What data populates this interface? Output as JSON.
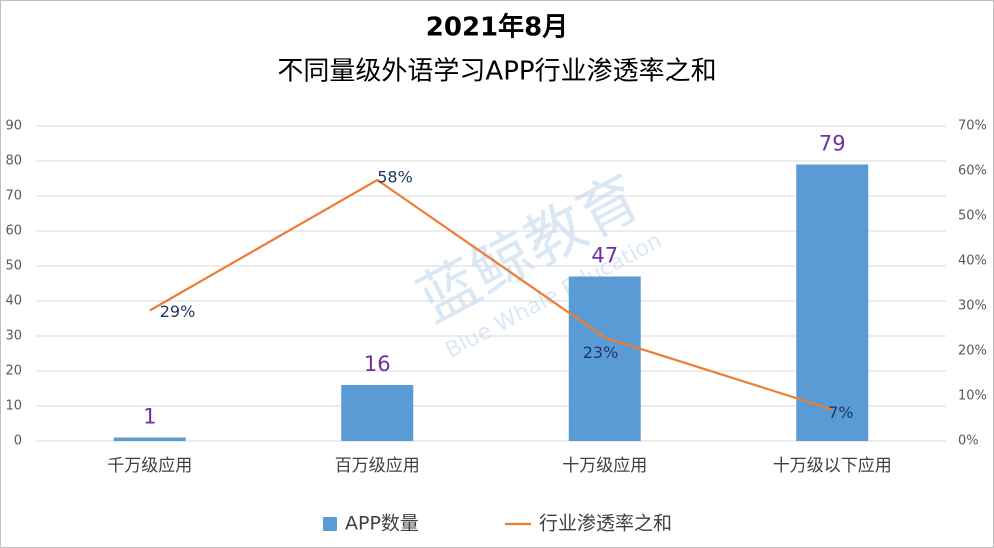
{
  "chart_data": {
    "type": "bar-line",
    "title": "2021年8月",
    "subtitle": "不同量级外语学习APP行业渗透率之和",
    "watermark": "蓝鲸教育",
    "watermark_sub": "Blue Whale Education",
    "categories": [
      "千万级应用",
      "百万级应用",
      "十万级应用",
      "十万级以下应用"
    ],
    "series": [
      {
        "name": "APP数量",
        "type": "bar",
        "color": "#5b9bd5",
        "values": [
          1,
          16,
          47,
          79
        ]
      },
      {
        "name": "行业渗透率之和",
        "type": "line",
        "axis": "y2",
        "color": "#ed7d31",
        "values": [
          29,
          58,
          23,
          7
        ],
        "value_labels": [
          "29%",
          "58%",
          "23%",
          "7%"
        ]
      }
    ],
    "ylim": [
      0,
      90
    ],
    "yticks": [
      0,
      10,
      20,
      30,
      40,
      50,
      60,
      70,
      80,
      90
    ],
    "y2lim": [
      0,
      70
    ],
    "y2ticks": [
      {
        "value": 0,
        "label": "0%"
      },
      {
        "value": 10,
        "label": "10%"
      },
      {
        "value": 20,
        "label": "20%"
      },
      {
        "value": 30,
        "label": "30%"
      },
      {
        "value": 40,
        "label": "40%"
      },
      {
        "value": 50,
        "label": "50%"
      },
      {
        "value": 60,
        "label": "60%"
      },
      {
        "value": 70,
        "label": "70%"
      }
    ],
    "grid": true,
    "legend": "bottom"
  }
}
